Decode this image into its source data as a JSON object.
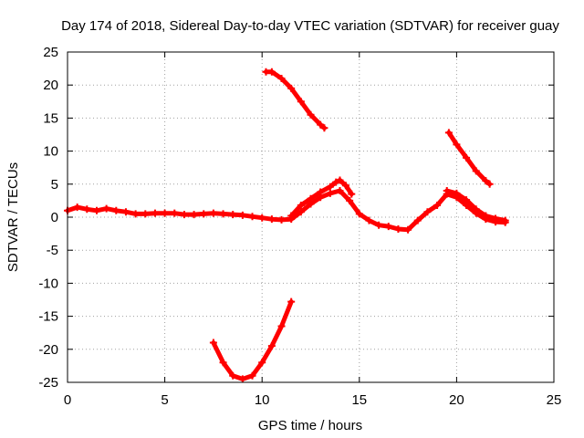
{
  "chart_data": {
    "type": "scatter",
    "title": "Day 174 of 2018, Sidereal Day-to-day VTEC variation (SDTVAR) for receiver guay",
    "xlabel": "GPS time / hours",
    "ylabel": "SDTVAR / TECUs",
    "xlim": [
      0,
      25
    ],
    "ylim": [
      -25,
      25
    ],
    "xticks": [
      0,
      5,
      10,
      15,
      20,
      25
    ],
    "yticks": [
      -25,
      -20,
      -15,
      -10,
      -5,
      0,
      5,
      10,
      15,
      20,
      25
    ],
    "xtick_labels": [
      "0",
      "5",
      "10",
      "15",
      "20",
      "25"
    ],
    "ytick_labels": [
      "-25",
      "-20",
      "-15",
      "-10",
      "-5",
      "0",
      "5",
      "10",
      "15",
      "20",
      "25"
    ],
    "grid": true,
    "marker_color": "#ff0000",
    "series": [
      {
        "name": "main",
        "x": [
          0.0,
          0.5,
          1.0,
          1.5,
          2.0,
          2.5,
          3.0,
          3.5,
          4.0,
          4.5,
          5.0,
          5.5,
          6.0,
          6.5,
          7.0,
          7.5,
          8.0,
          8.5,
          9.0,
          9.5,
          10.0,
          10.5,
          11.0,
          11.5,
          12.0,
          12.5,
          13.0,
          13.5,
          14.0,
          14.5,
          15.0,
          15.5,
          16.0,
          16.5,
          17.0,
          17.5,
          18.0,
          18.5,
          19.0,
          19.5,
          20.0,
          20.5,
          21.0,
          21.5,
          22.0,
          22.5
        ],
        "y": [
          1.0,
          1.5,
          1.2,
          1.0,
          1.3,
          1.0,
          0.8,
          0.5,
          0.5,
          0.6,
          0.6,
          0.6,
          0.4,
          0.4,
          0.5,
          0.6,
          0.5,
          0.4,
          0.3,
          0.1,
          -0.1,
          -0.3,
          -0.4,
          -0.3,
          0.8,
          2.0,
          3.0,
          3.6,
          4.0,
          2.5,
          0.5,
          -0.5,
          -1.2,
          -1.4,
          -1.8,
          -1.9,
          -0.5,
          0.8,
          1.8,
          3.5,
          3.0,
          1.8,
          0.6,
          -0.3,
          -0.7,
          -0.8
        ]
      },
      {
        "name": "main-upper",
        "x": [
          11.5,
          12.0,
          12.5,
          13.0,
          13.5,
          13.8,
          14.0,
          14.3,
          14.6
        ],
        "y": [
          0.2,
          1.8,
          2.8,
          3.8,
          4.6,
          5.3,
          5.6,
          4.8,
          3.5
        ]
      },
      {
        "name": "main-upper-2",
        "x": [
          19.5,
          20.0,
          20.5,
          21.0,
          21.5,
          22.0,
          22.5
        ],
        "y": [
          4.0,
          3.6,
          2.6,
          1.2,
          0.2,
          -0.2,
          -0.5
        ]
      },
      {
        "name": "top-arc-1",
        "x": [
          10.2,
          10.5,
          11.0,
          11.5,
          12.0,
          12.5,
          13.0,
          13.2
        ],
        "y": [
          22.0,
          22.0,
          21.0,
          19.5,
          17.5,
          15.5,
          14.0,
          13.5
        ]
      },
      {
        "name": "top-arc-2",
        "x": [
          19.6,
          20.0,
          20.5,
          21.0,
          21.5,
          21.7
        ],
        "y": [
          12.8,
          11.0,
          9.0,
          7.0,
          5.5,
          5.0
        ]
      },
      {
        "name": "bottom-arc",
        "x": [
          7.5,
          8.0,
          8.5,
          9.0,
          9.5,
          10.0,
          10.5,
          11.0,
          11.5
        ],
        "y": [
          -19.0,
          -22.0,
          -24.0,
          -24.5,
          -24.0,
          -22.0,
          -19.5,
          -16.5,
          -12.8
        ]
      }
    ]
  }
}
